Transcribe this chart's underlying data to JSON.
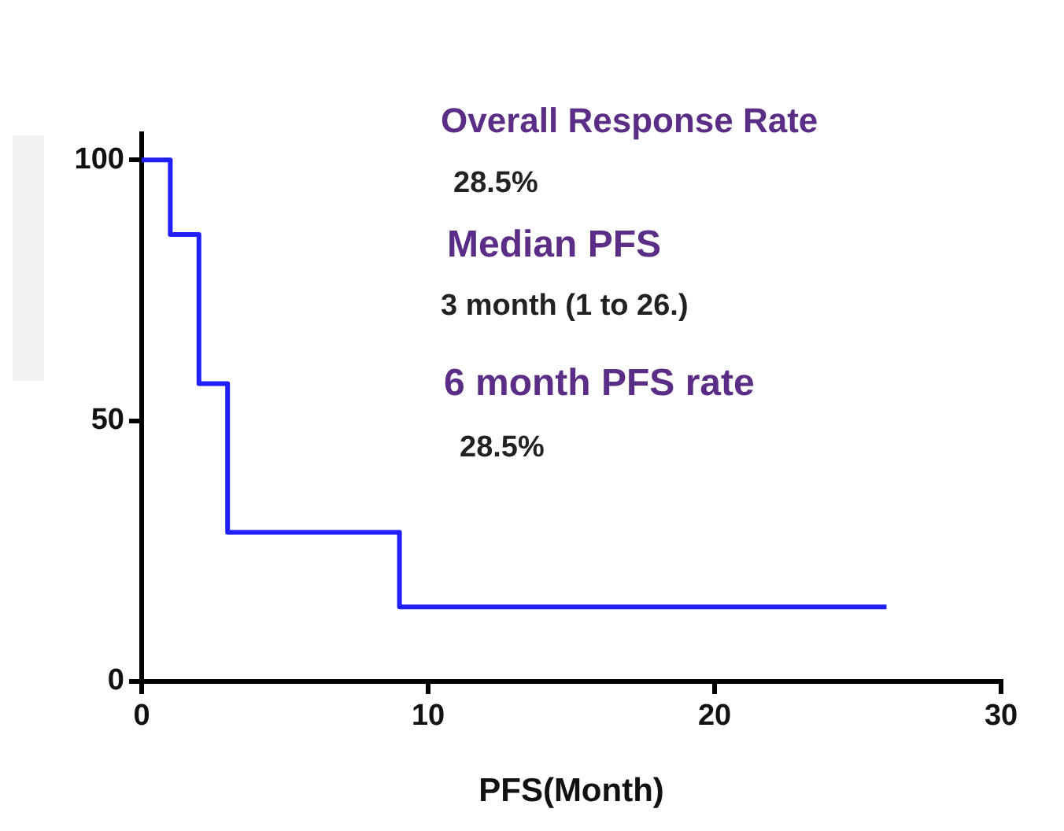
{
  "chart_data": {
    "type": "step",
    "xlabel": "PFS(Month)",
    "x": [
      0,
      1,
      2,
      3,
      9,
      26
    ],
    "series": [
      {
        "color": "#1f1fff",
        "values": [
          100,
          85.7,
          57.1,
          28.6,
          14.3,
          14.3
        ]
      }
    ],
    "xlim": [
      0,
      30
    ],
    "xticks": [
      0,
      10,
      20,
      30
    ],
    "ylim": [
      0,
      105
    ],
    "yticks": [
      0,
      50,
      100
    ],
    "grid": false,
    "legend": false,
    "marker": "none",
    "line_style": "solid",
    "annotations": [
      "Overall Response Rate",
      "28.5%",
      "Median PFS",
      "3 month (1 to 26.)",
      "6 month PFS rate",
      "28.5%"
    ]
  }
}
